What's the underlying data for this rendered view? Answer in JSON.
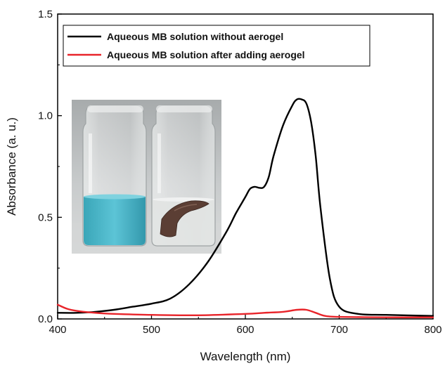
{
  "chart_data": {
    "type": "line",
    "xlabel": "Wavelength (nm)",
    "ylabel": "Absorbance (a. u.)",
    "xlim": [
      400,
      800
    ],
    "ylim": [
      0.0,
      1.5
    ],
    "x_ticks": [
      400,
      500,
      600,
      700,
      800
    ],
    "y_ticks": [
      0.0,
      0.5,
      1.0,
      1.5
    ],
    "x_tick_labels": [
      "400",
      "500",
      "600",
      "700",
      "800"
    ],
    "y_tick_labels": [
      "0.0",
      "0.5",
      "1.0",
      "1.5"
    ],
    "grid": false,
    "legend_position": "top-left",
    "series": [
      {
        "name": "Aqueous MB solution without aerogel",
        "color": "#000000",
        "x": [
          400,
          420,
          440,
          460,
          480,
          500,
          520,
          540,
          560,
          580,
          590,
          600,
          605,
          610,
          615,
          620,
          625,
          630,
          640,
          650,
          655,
          660,
          665,
          670,
          675,
          680,
          690,
          700,
          720,
          750,
          800
        ],
        "y": [
          0.03,
          0.03,
          0.035,
          0.045,
          0.06,
          0.075,
          0.1,
          0.17,
          0.28,
          0.43,
          0.52,
          0.6,
          0.64,
          0.65,
          0.645,
          0.65,
          0.7,
          0.8,
          0.95,
          1.05,
          1.08,
          1.08,
          1.06,
          0.97,
          0.8,
          0.55,
          0.2,
          0.06,
          0.025,
          0.02,
          0.015
        ]
      },
      {
        "name": "Aqueous MB solution after adding aerogel",
        "color": "#e8242a",
        "x": [
          400,
          410,
          420,
          440,
          460,
          500,
          550,
          600,
          620,
          640,
          655,
          665,
          675,
          685,
          700,
          750,
          800
        ],
        "y": [
          0.07,
          0.05,
          0.04,
          0.03,
          0.025,
          0.02,
          0.018,
          0.025,
          0.03,
          0.035,
          0.045,
          0.045,
          0.03,
          0.015,
          0.01,
          0.008,
          0.008
        ]
      }
    ],
    "inset": {
      "kind": "photo",
      "subject": "two-glass-vials-blue-solution-and-aerogel"
    }
  }
}
